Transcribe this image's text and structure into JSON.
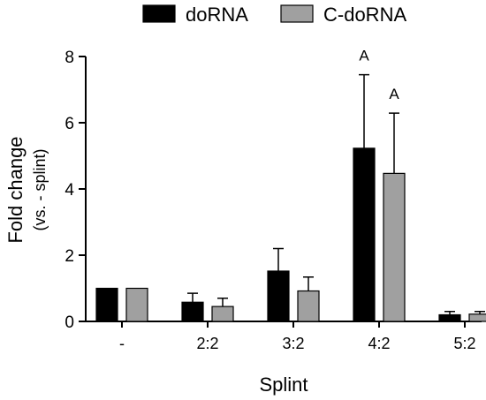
{
  "chart_data": {
    "type": "bar",
    "xlabel": "Splint",
    "ylabel": [
      "Fold change",
      "(vs. - splint)"
    ],
    "ylim": [
      0,
      8
    ],
    "yticks": [
      0,
      2,
      4,
      6,
      8
    ],
    "categories": [
      "-",
      "2:2",
      "3:2",
      "4:2",
      "5:2"
    ],
    "legend_position": "top",
    "series": [
      {
        "name": "doRNA",
        "color": "#000000",
        "values": [
          1.0,
          0.58,
          1.52,
          5.23,
          0.2
        ],
        "errors": [
          0.0,
          0.27,
          0.68,
          2.22,
          0.1
        ]
      },
      {
        "name": "C-doRNA",
        "color": "#a0a0a0",
        "values": [
          1.0,
          0.45,
          0.92,
          4.47,
          0.22
        ],
        "errors": [
          0.0,
          0.25,
          0.42,
          1.82,
          0.08
        ]
      }
    ],
    "annotations": [
      {
        "category": "4:2",
        "series": 0,
        "text": "A"
      },
      {
        "category": "4:2",
        "series": 1,
        "text": "A"
      }
    ]
  }
}
